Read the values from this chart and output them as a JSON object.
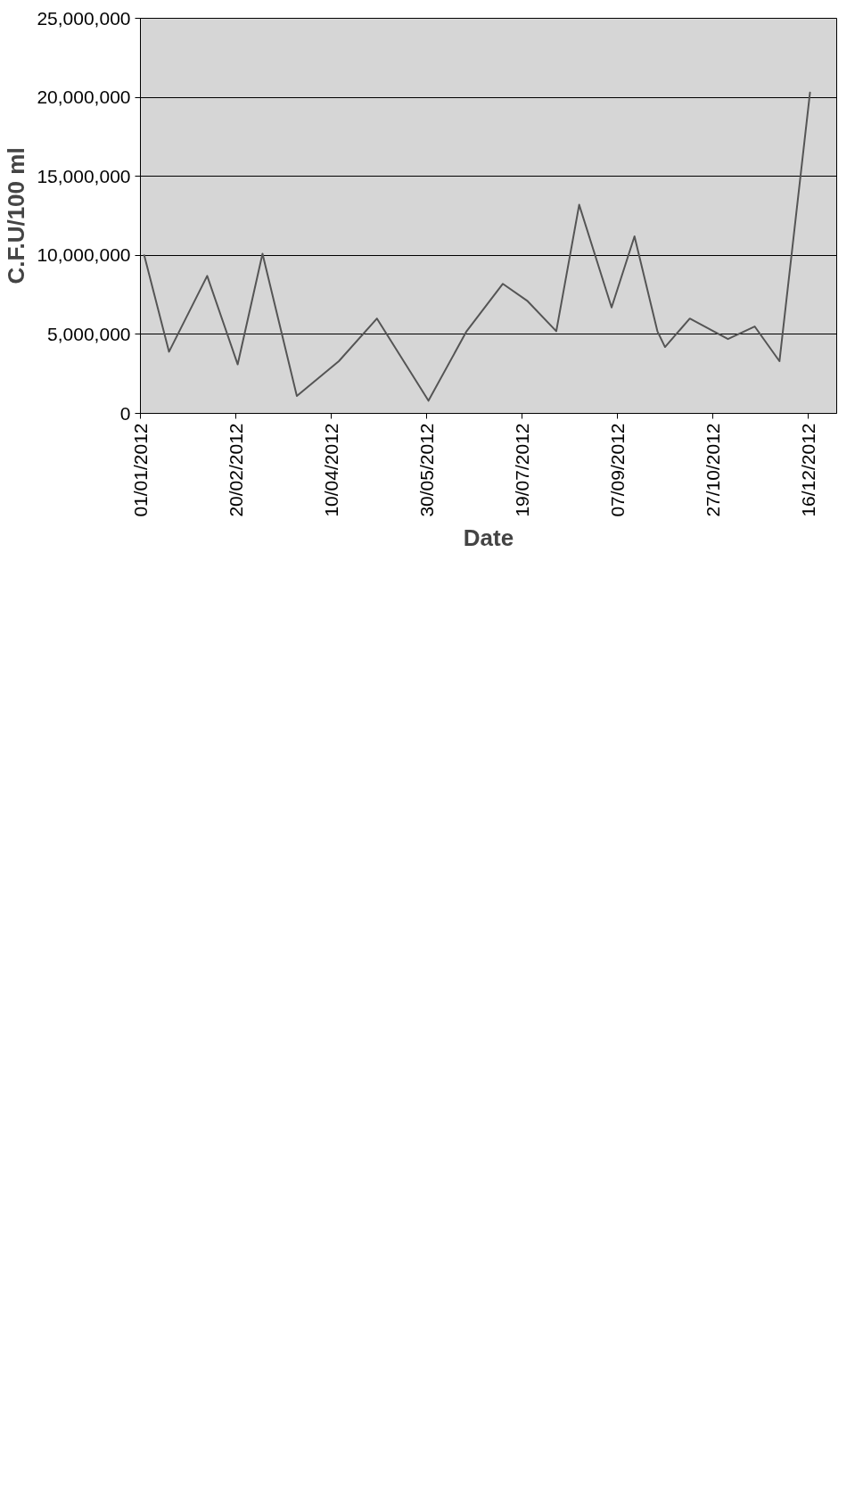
{
  "chart_data": {
    "type": "line",
    "xlabel": "Date",
    "ylabel": "C.F.U/100 ml",
    "x": [
      "2012-01-03",
      "2012-01-16",
      "2012-02-05",
      "2012-02-21",
      "2012-03-05",
      "2012-03-23",
      "2012-04-14",
      "2012-05-04",
      "2012-05-31",
      "2012-06-20",
      "2012-07-09",
      "2012-07-22",
      "2012-08-06",
      "2012-08-18",
      "2012-09-04",
      "2012-09-16",
      "2012-09-28",
      "2012-10-02",
      "2012-10-15",
      "2012-11-04",
      "2012-11-18",
      "2012-12-01",
      "2012-12-17"
    ],
    "series": [
      {
        "color": "#555555",
        "values": [
          10000000,
          3900000,
          8700000,
          3100000,
          10100000,
          1100000,
          3300000,
          6000000,
          800000,
          5200000,
          8200000,
          7100000,
          5200000,
          13200000,
          6700000,
          11200000,
          5200000,
          4200000,
          6000000,
          4700000,
          5500000,
          3300000,
          20300000
        ]
      }
    ],
    "xlim": [
      "2012-01-01",
      "2012-12-31"
    ],
    "xticks": [
      {
        "value": "2012-01-01",
        "label": "01/01/2012"
      },
      {
        "value": "2012-02-20",
        "label": "20/02/2012"
      },
      {
        "value": "2012-04-10",
        "label": "10/04/2012"
      },
      {
        "value": "2012-05-30",
        "label": "30/05/2012"
      },
      {
        "value": "2012-07-19",
        "label": "19/07/2012"
      },
      {
        "value": "2012-09-07",
        "label": "07/09/2012"
      },
      {
        "value": "2012-10-27",
        "label": "27/10/2012"
      },
      {
        "value": "2012-12-16",
        "label": "16/12/2012"
      }
    ],
    "ylim": [
      0,
      25000000
    ],
    "yticks": [
      0,
      {
        "value": 5000000,
        "label": "5,000,000"
      },
      {
        "value": 10000000,
        "label": "10,000,000"
      },
      {
        "value": 15000000,
        "label": "15,000,000"
      },
      {
        "value": 20000000,
        "label": "20,000,000"
      },
      {
        "value": 25000000,
        "label": "25,000,000"
      }
    ],
    "grid": "y",
    "marker": "none",
    "line_style": "solid"
  }
}
